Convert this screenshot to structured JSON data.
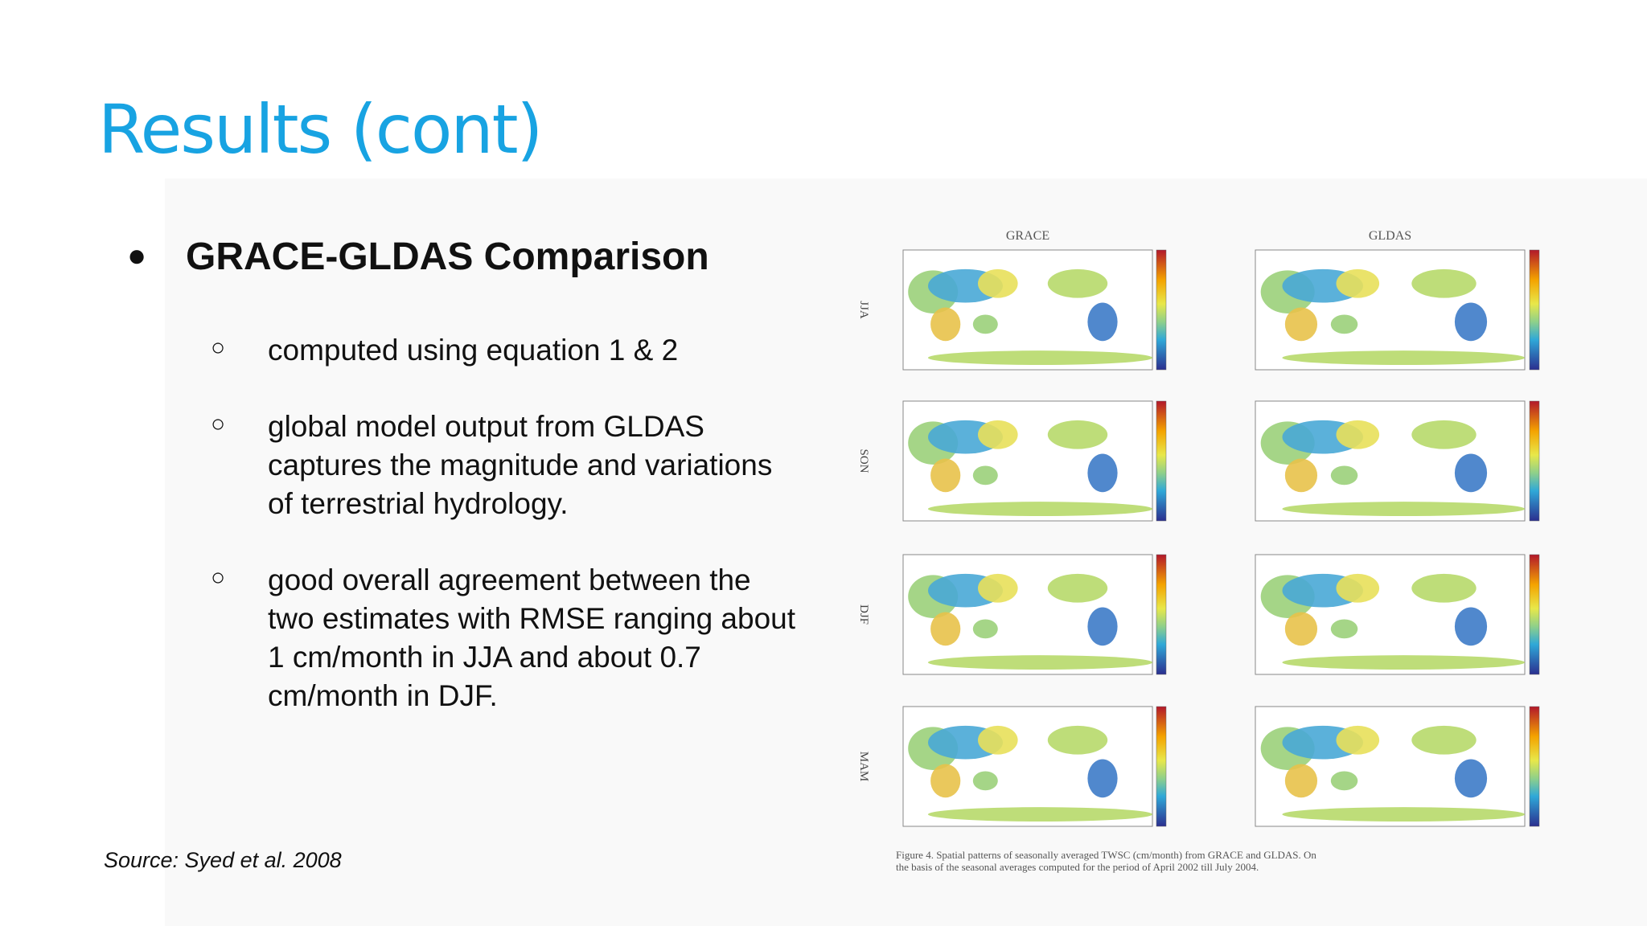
{
  "title": "Results (cont)",
  "bullet": {
    "heading": "GRACE-GLDAS Comparison",
    "items": [
      [
        "computed using equation 1 & 2"
      ],
      [
        "global model output from GLDAS",
        "captures the magnitude and variations",
        "of terrestrial hydrology."
      ],
      [
        "good overall agreement between the",
        "two estimates with RMSE ranging about",
        "1 cm/month in JJA and  about 0.7",
        "cm/month in DJF."
      ]
    ]
  },
  "source": "Source: Syed et al. 2008",
  "figure": {
    "columns": [
      "GRACE",
      "GLDAS"
    ],
    "rows": [
      "JJA",
      "SON",
      "DJF",
      "MAM"
    ],
    "caption": [
      "Figure 4.   Spatial patterns of seasonally averaged TWSC (cm/month) from GRACE and GLDAS. On",
      "the basis of the seasonal averages computed for the period of April 2002 till July 2004."
    ]
  }
}
